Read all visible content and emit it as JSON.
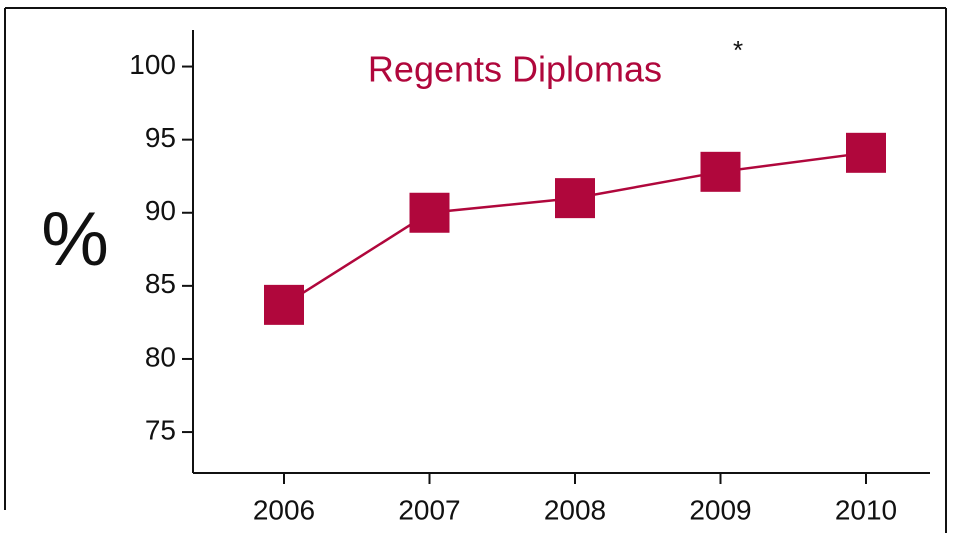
{
  "chart_data": {
    "type": "line",
    "title": "Regents Diplomas",
    "annotation": "*",
    "ylabel": "%",
    "categories": [
      "2006",
      "2007",
      "2008",
      "2009",
      "2010"
    ],
    "series": [
      {
        "name": "Regents Diplomas",
        "color": "#b0073c",
        "values": [
          83.7,
          90.0,
          91.0,
          92.8,
          94.1
        ]
      }
    ],
    "ylim": [
      72.2,
      102.5
    ],
    "yticks": [
      75,
      80,
      85,
      90,
      95,
      100
    ],
    "grid": false
  }
}
